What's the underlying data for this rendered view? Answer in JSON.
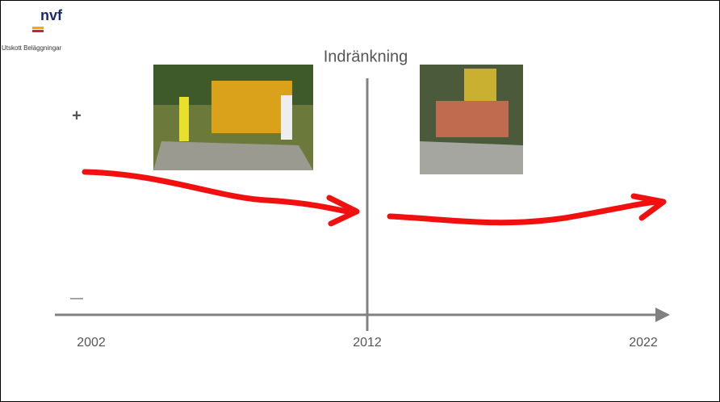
{
  "logo": {
    "text": "nvf",
    "caption": "Utskott Beläggningar"
  },
  "title": "Indränkning",
  "axis": {
    "plus": "+",
    "minus": "—",
    "labels": [
      "2002",
      "2012",
      "2022"
    ]
  }
}
